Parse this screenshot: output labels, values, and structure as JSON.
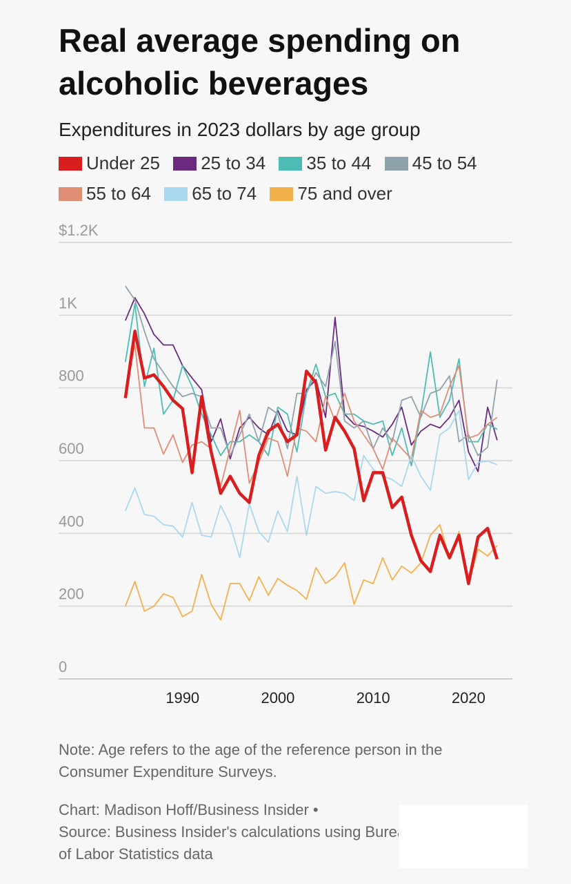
{
  "chart_data": {
    "type": "line",
    "title": "Real average spending on alcoholic beverages",
    "subtitle": "Expenditures in 2023 dollars by age group",
    "note": "Note: Age refers to the age of the reference person in the Consumer Expenditure Surveys.",
    "credit": "Chart: Madison Hoff/Business Insider •",
    "source": "Source: Business Insider's calculations using Bureau of Labor Statistics data",
    "x": [
      1984,
      1985,
      1986,
      1987,
      1988,
      1989,
      1990,
      1991,
      1992,
      1993,
      1994,
      1995,
      1996,
      1997,
      1998,
      1999,
      2000,
      2001,
      2002,
      2003,
      2004,
      2005,
      2006,
      2007,
      2008,
      2009,
      2010,
      2011,
      2012,
      2013,
      2014,
      2015,
      2016,
      2017,
      2018,
      2019,
      2020,
      2021,
      2022,
      2023
    ],
    "xlim": [
      1977,
      2024.6
    ],
    "xticks": [
      1990,
      2000,
      2010,
      2020
    ],
    "ylim": [
      0,
      1200
    ],
    "yticks": [
      0,
      200,
      400,
      600,
      800,
      {
        "value": 1000,
        "label": "1K"
      },
      {
        "value": 1200,
        "label": "$1.2K"
      }
    ],
    "grid": true,
    "series": [
      {
        "name": "Under 25",
        "color": "#d81e1e",
        "values": [
          772,
          956,
          827,
          836,
          804,
          766,
          743,
          567,
          776,
          624,
          510,
          557,
          510,
          485,
          614,
          681,
          700,
          652,
          671,
          846,
          814,
          629,
          719,
          681,
          633,
          490,
          567,
          567,
          471,
          500,
          395,
          325,
          295,
          395,
          333,
          395,
          262,
          390,
          414,
          329
        ]
      },
      {
        "name": "25 to 34",
        "color": "#6a2a7e",
        "values": [
          985,
          1048,
          1004,
          947,
          918,
          918,
          861,
          827,
          795,
          652,
          715,
          605,
          690,
          719,
          690,
          671,
          738,
          681,
          671,
          795,
          823,
          719,
          994,
          728,
          700,
          694,
          681,
          665,
          700,
          747,
          643,
          681,
          700,
          690,
          719,
          766,
          624,
          570,
          747,
          656
        ]
      },
      {
        "name": "35 to 44",
        "color": "#4dbcb4",
        "values": [
          871,
          1032,
          804,
          909,
          728,
          766,
          861,
          804,
          728,
          671,
          614,
          652,
          652,
          671,
          652,
          614,
          747,
          728,
          624,
          785,
          865,
          776,
          785,
          728,
          728,
          709,
          700,
          709,
          614,
          690,
          586,
          728,
          899,
          719,
          766,
          880,
          652,
          652,
          700,
          686
        ]
      },
      {
        "name": "45 to 54",
        "color": "#8fa3ac",
        "values": [
          1080,
          1042,
          956,
          880,
          842,
          804,
          776,
          785,
          776,
          690,
          690,
          614,
          671,
          728,
          652,
          747,
          728,
          633,
          785,
          785,
          842,
          804,
          928,
          709,
          690,
          709,
          633,
          690,
          652,
          766,
          776,
          719,
          785,
          795,
          833,
          652,
          671,
          614,
          637,
          823
        ]
      },
      {
        "name": "55 to 64",
        "color": "#e08d75",
        "values": [
          785,
          918,
          690,
          690,
          618,
          671,
          595,
          643,
          652,
          633,
          529,
          633,
          738,
          538,
          595,
          662,
          652,
          557,
          690,
          681,
          652,
          776,
          709,
          785,
          709,
          671,
          633,
          576,
          662,
          633,
          605,
          738,
          719,
          728,
          804,
          861,
          662,
          671,
          700,
          719
        ]
      },
      {
        "name": "65 to 74",
        "color": "#a9d8ee",
        "values": [
          462,
          525,
          452,
          447,
          424,
          420,
          390,
          485,
          395,
          390,
          477,
          424,
          333,
          481,
          405,
          376,
          462,
          405,
          557,
          395,
          529,
          510,
          515,
          510,
          490,
          614,
          576,
          557,
          548,
          529,
          614,
          557,
          519,
          671,
          690,
          738,
          548,
          595,
          599,
          589
        ]
      },
      {
        "name": "75 and over",
        "color": "#f2b14b",
        "values": [
          200,
          268,
          186,
          200,
          234,
          224,
          171,
          186,
          287,
          205,
          162,
          262,
          262,
          215,
          281,
          230,
          276,
          257,
          243,
          219,
          306,
          262,
          281,
          319,
          205,
          272,
          262,
          333,
          272,
          310,
          291,
          319,
          395,
          424,
          329,
          405,
          262,
          357,
          338,
          367
        ]
      }
    ]
  }
}
